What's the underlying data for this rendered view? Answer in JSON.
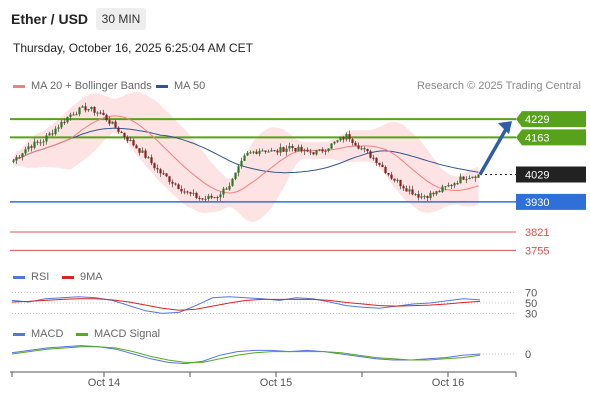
{
  "header": {
    "title": "Ether / USD",
    "timeframe": "30 MIN",
    "datetime": "Thursday, October 16, 2025 6:25:04 AM CET"
  },
  "legend": {
    "ma20_label": "MA 20 + Bollinger Bands",
    "ma50_label": "MA 50",
    "research": "Research © 2025 Trading Central",
    "rsi_label": "RSI",
    "rsi_ma_label": "9MA",
    "macd_label": "MACD",
    "macd_signal_label": "MACD Signal"
  },
  "colors": {
    "ma20": "#f08080",
    "ma50": "#34568f",
    "bollinger_fill": "#fde3e3",
    "resistance": "#58a21b",
    "support": "#2f6fd8",
    "extra_support": "#e05050",
    "current": "#222222",
    "arrow": "#2e5ea8",
    "rsi": "#5577dd",
    "rsi_ma": "#dd2222",
    "macd": "#5577dd",
    "macd_signal": "#55aa22"
  },
  "chart_data": [
    {
      "type": "candlestick",
      "title": "Ether / USD 30 MIN",
      "x_ticks": [
        "Oct 14",
        "Oct 15",
        "Oct 16"
      ],
      "ylim": [
        3720,
        4280
      ],
      "levels": [
        {
          "value": 4229,
          "label": "4229",
          "kind": "resistance"
        },
        {
          "value": 4163,
          "label": "4163",
          "kind": "resistance"
        },
        {
          "value": 4029,
          "label": "4029",
          "kind": "current"
        },
        {
          "value": 3930,
          "label": "3930",
          "kind": "support"
        },
        {
          "value": 3821,
          "label": "3821",
          "kind": "extra_support"
        },
        {
          "value": 3755,
          "label": "3755",
          "kind": "extra_support"
        }
      ],
      "close_anchors": [
        4080,
        4130,
        4150,
        4200,
        4250,
        4270,
        4250,
        4200,
        4150,
        4100,
        4040,
        4000,
        3960,
        3940,
        3950,
        4000,
        4100,
        4120,
        4110,
        4130,
        4110,
        4110,
        4140,
        4170,
        4120,
        4080,
        4020,
        3980,
        3950,
        3960,
        3990,
        4020,
        4029
      ],
      "projection": {
        "from": 4029,
        "to": 4229
      }
    },
    {
      "type": "line",
      "name": "RSI",
      "levels": [
        70,
        50,
        30
      ],
      "ylim": [
        0,
        100
      ],
      "series": [
        {
          "name": "RSI",
          "values": [
            55,
            52,
            58,
            60,
            62,
            60,
            55,
            45,
            35,
            30,
            32,
            45,
            60,
            62,
            60,
            58,
            55,
            60,
            58,
            52,
            45,
            42,
            40,
            44,
            48,
            50,
            54,
            58,
            56
          ]
        },
        {
          "name": "9MA",
          "values": [
            52,
            53,
            55,
            57,
            58,
            58,
            56,
            52,
            46,
            40,
            36,
            38,
            44,
            50,
            55,
            57,
            57,
            57,
            57,
            55,
            51,
            48,
            45,
            44,
            45,
            46,
            48,
            51,
            53
          ]
        }
      ]
    },
    {
      "type": "line",
      "name": "MACD",
      "zero_label": "0",
      "ylim": [
        -1,
        1
      ],
      "series": [
        {
          "name": "MACD",
          "values": [
            0.1,
            0.3,
            0.5,
            0.6,
            0.7,
            0.6,
            0.4,
            0.0,
            -0.4,
            -0.7,
            -0.8,
            -0.6,
            -0.1,
            0.2,
            0.3,
            0.3,
            0.2,
            0.3,
            0.2,
            0.0,
            -0.2,
            -0.4,
            -0.5,
            -0.5,
            -0.4,
            -0.3,
            -0.1,
            0.0
          ]
        },
        {
          "name": "MACD Signal",
          "values": [
            0.0,
            0.2,
            0.4,
            0.5,
            0.6,
            0.6,
            0.5,
            0.2,
            -0.2,
            -0.5,
            -0.7,
            -0.7,
            -0.4,
            -0.1,
            0.1,
            0.2,
            0.2,
            0.2,
            0.2,
            0.1,
            -0.1,
            -0.3,
            -0.4,
            -0.5,
            -0.5,
            -0.4,
            -0.3,
            -0.1
          ]
        }
      ]
    }
  ]
}
